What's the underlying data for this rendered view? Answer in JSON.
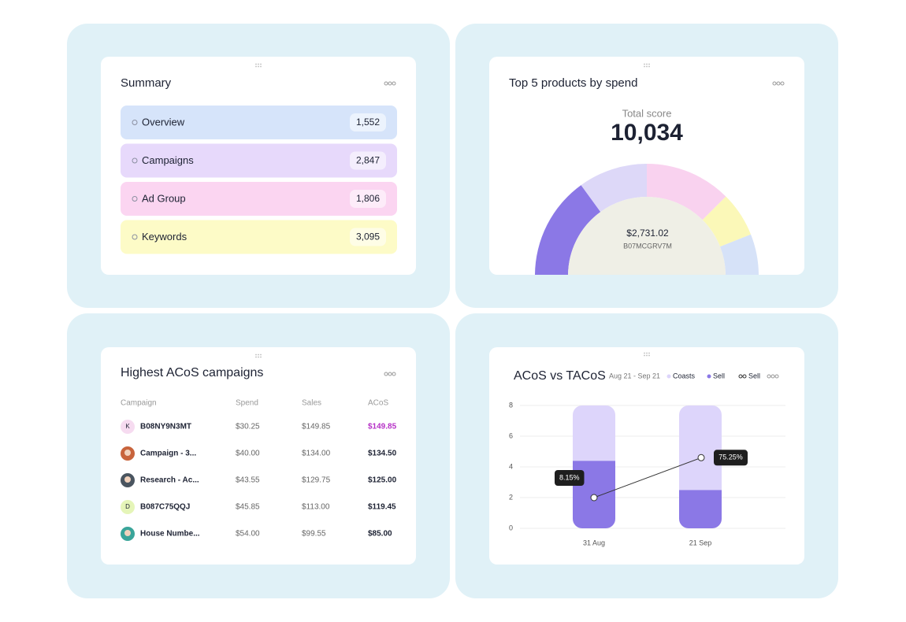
{
  "summary": {
    "title": "Summary",
    "items": [
      {
        "label": "Overview",
        "value": "1,552",
        "color": "#d6e4fa"
      },
      {
        "label": "Campaigns",
        "value": "2,847",
        "color": "#e7d9fb"
      },
      {
        "label": "Ad Group",
        "value": "1,806",
        "color": "#fbd5f1"
      },
      {
        "label": "Keywords",
        "value": "3,095",
        "color": "#fdfbc7"
      }
    ]
  },
  "campaigns": {
    "title": "Highest ACoS campaigns",
    "columns": [
      "Campaign",
      "Spend",
      "Sales",
      "ACoS"
    ],
    "rows": [
      {
        "avatar": "K",
        "cells": [
          "B08NY9N3MT",
          "$30.25",
          "$149.85",
          "$149.85"
        ]
      },
      {
        "cells": [
          "Campaign - 3...",
          "$40.00",
          "$134.00",
          "$134.50"
        ]
      },
      {
        "cells": [
          "Research - Ac...",
          "$43.55",
          "$129.75",
          "$125.00"
        ]
      },
      {
        "avatar": "D",
        "cells": [
          "B087C75QQJ",
          "$45.85",
          "$113.00",
          "$119.45"
        ]
      },
      {
        "cells": [
          "House Numbe...",
          "$54.00",
          "$99.55",
          "$85.00"
        ]
      }
    ]
  },
  "chart_data": [
    {
      "type": "pie",
      "title": "Top 5 products by spend",
      "total_label": "Total score",
      "total": "10,034",
      "center_value": "$2,731.02",
      "center_label": "B07MCGRV7M",
      "values": [
        30,
        20,
        25,
        13,
        12
      ],
      "colors": [
        "#8b78e6",
        "#ddd8f8",
        "#f9d2ef",
        "#fbf8b8",
        "#d6e2f8"
      ]
    },
    {
      "type": "bar",
      "title": "ACoS vs TACoS",
      "date_range": "Aug 21 - Sep 21",
      "categories": [
        "31 Aug",
        "21 Sep"
      ],
      "series": [
        {
          "name": "Coasts",
          "color": "#ddd5fb",
          "values": [
            3.6,
            5.5
          ]
        },
        {
          "name": "Sell",
          "color": "#8b78e6",
          "values": [
            4.4,
            2.5
          ]
        },
        {
          "name": "Sell",
          "type": "line",
          "color": "#333333",
          "values": [
            2,
            4.6
          ]
        }
      ],
      "annotations": [
        "8.15%",
        "75.25%"
      ],
      "ylim": [
        0,
        8
      ],
      "yticks": [
        0,
        2,
        4,
        6,
        8
      ],
      "grid": true
    }
  ]
}
